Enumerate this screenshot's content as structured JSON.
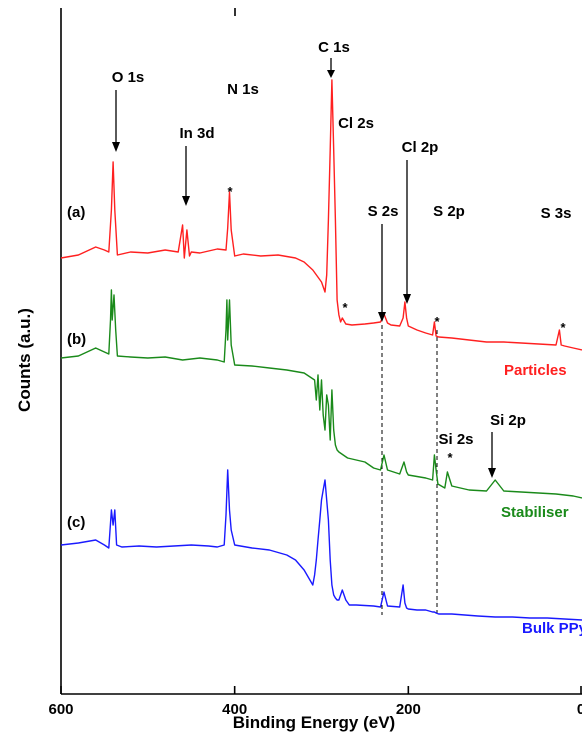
{
  "chart_data": {
    "type": "line",
    "xlabel": "Binding Energy (eV)",
    "ylabel": "Counts (a.u.)",
    "xlim": [
      600,
      0
    ],
    "x_reversed": true,
    "x_ticks": [
      600,
      400,
      200,
      0
    ],
    "y_ticks_shown": false,
    "legend": "none",
    "colors": {
      "a": "#ff2020",
      "b": "#1a8a1a",
      "c": "#1a1aff",
      "axis": "#000000"
    },
    "series": [
      {
        "name": "Particles",
        "label": "(a)",
        "x": [
          600,
          580,
          560,
          550,
          545,
          542,
          540,
          538,
          535,
          520,
          500,
          480,
          465,
          460,
          458,
          455,
          452,
          450,
          440,
          420,
          410,
          408,
          406,
          404,
          400,
          390,
          370,
          350,
          330,
          320,
          310,
          300,
          296,
          294,
          292,
          290,
          288,
          286,
          284,
          282,
          280,
          278,
          276,
          272,
          265,
          250,
          240,
          232,
          228,
          224,
          220,
          210,
          206,
          204,
          202,
          200,
          190,
          180,
          172,
          170,
          168,
          165,
          150,
          130,
          110,
          90,
          70,
          50,
          30,
          26,
          24,
          20,
          10,
          0
        ],
        "y": [
          258,
          255,
          247,
          250,
          252,
          210,
          162,
          210,
          255,
          252,
          253,
          250,
          252,
          225,
          258,
          230,
          256,
          252,
          253,
          249,
          250,
          228,
          192,
          230,
          256,
          254,
          256,
          255,
          258,
          262,
          270,
          282,
          292,
          275,
          220,
          150,
          80,
          150,
          220,
          300,
          315,
          322,
          318,
          324,
          325,
          324,
          323,
          322,
          314,
          323,
          325,
          326,
          318,
          302,
          318,
          326,
          330,
          333,
          335,
          322,
          336,
          337,
          338,
          340,
          342,
          342,
          343,
          344,
          345,
          330,
          345,
          346,
          348,
          350
        ]
      },
      {
        "name": "Stabiliser",
        "label": "(b)",
        "x": [
          600,
          580,
          560,
          550,
          545,
          543,
          542,
          541,
          539,
          537,
          535,
          520,
          500,
          480,
          460,
          440,
          420,
          412,
          410,
          409,
          408,
          406,
          404,
          400,
          380,
          360,
          340,
          320,
          308,
          306,
          304,
          302,
          300,
          298,
          296,
          294,
          292,
          290,
          288,
          286,
          284,
          282,
          280,
          270,
          250,
          240,
          232,
          228,
          224,
          210,
          205,
          202,
          200,
          180,
          172,
          170,
          168,
          166,
          162,
          158,
          155,
          150,
          140,
          130,
          110,
          100,
          90,
          70,
          50,
          30,
          10,
          0
        ],
        "y": [
          358,
          356,
          348,
          352,
          354,
          320,
          290,
          320,
          295,
          330,
          356,
          357,
          358,
          357,
          360,
          358,
          360,
          362,
          330,
          300,
          340,
          300,
          345,
          365,
          366,
          368,
          370,
          373,
          380,
          400,
          375,
          410,
          380,
          415,
          430,
          395,
          405,
          440,
          390,
          430,
          445,
          450,
          452,
          458,
          462,
          468,
          470,
          455,
          470,
          474,
          462,
          472,
          475,
          478,
          480,
          455,
          470,
          484,
          486,
          488,
          472,
          486,
          488,
          490,
          491,
          480,
          491,
          492,
          493,
          494,
          496,
          498
        ]
      },
      {
        "name": "Bulk PPy",
        "label": "(c)",
        "x": [
          600,
          580,
          560,
          550,
          545,
          542,
          540,
          538,
          536,
          530,
          510,
          490,
          470,
          450,
          430,
          420,
          412,
          410,
          408,
          406,
          404,
          400,
          380,
          360,
          340,
          330,
          320,
          310,
          308,
          306,
          304,
          302,
          300,
          298,
          296,
          294,
          292,
          290,
          288,
          286,
          284,
          282,
          280,
          276,
          272,
          268,
          260,
          240,
          232,
          228,
          224,
          210,
          206,
          204,
          202,
          200,
          190,
          180,
          172,
          170,
          168,
          165,
          150,
          120,
          100,
          80,
          60,
          40,
          20,
          0
        ],
        "y": [
          545,
          543,
          540,
          545,
          548,
          510,
          525,
          510,
          545,
          547,
          546,
          547,
          546,
          545,
          546,
          547,
          545,
          515,
          470,
          510,
          530,
          545,
          548,
          550,
          555,
          560,
          570,
          585,
          575,
          560,
          540,
          520,
          500,
          490,
          480,
          500,
          520,
          560,
          585,
          595,
          598,
          600,
          600,
          590,
          600,
          605,
          605,
          606,
          607,
          592,
          606,
          607,
          585,
          603,
          608,
          609,
          610,
          610,
          612,
          612,
          613,
          614,
          614,
          616,
          617,
          617,
          618,
          618,
          619,
          620
        ]
      }
    ],
    "annotations": [
      "O 1s",
      "N 1s",
      "In 3d",
      "C 1s",
      "Cl 2s",
      "Cl 2p",
      "S 2s",
      "S 2p",
      "S 3s",
      "Si 2s",
      "Si 2p",
      "*"
    ],
    "trace_labels": [
      "(a)",
      "(b)",
      "(c)"
    ],
    "series_labels": [
      "Particles",
      "Stabiliser",
      "Bulk PPy"
    ]
  }
}
